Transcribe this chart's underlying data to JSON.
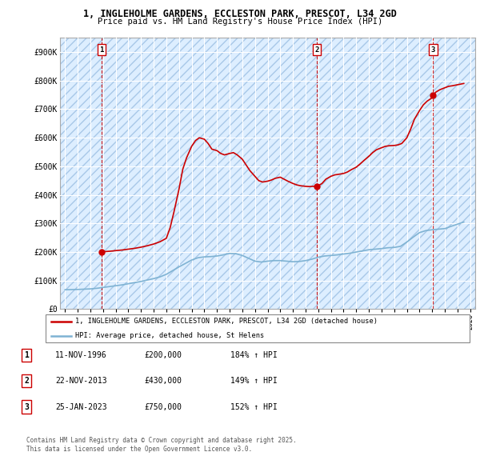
{
  "title": "1, INGLEHOLME GARDENS, ECCLESTON PARK, PRESCOT, L34 2GD",
  "subtitle": "Price paid vs. HM Land Registry's House Price Index (HPI)",
  "ylim": [
    0,
    950000
  ],
  "yticks": [
    0,
    100000,
    200000,
    300000,
    400000,
    500000,
    600000,
    700000,
    800000,
    900000
  ],
  "ytick_labels": [
    "£0",
    "£100K",
    "£200K",
    "£300K",
    "£400K",
    "£500K",
    "£600K",
    "£700K",
    "£800K",
    "£900K"
  ],
  "xlim_start": 1993.6,
  "xlim_end": 2026.4,
  "plot_bg_color": "#ddeeff",
  "red_line_color": "#cc0000",
  "blue_line_color": "#7fb3d3",
  "sale_marker_color": "#cc0000",
  "sales": [
    {
      "num": 1,
      "year": 1996.87,
      "price": 200000
    },
    {
      "num": 2,
      "year": 2013.9,
      "price": 430000
    },
    {
      "num": 3,
      "year": 2023.07,
      "price": 750000
    }
  ],
  "legend_line1": "1, INGLEHOLME GARDENS, ECCLESTON PARK, PRESCOT, L34 2GD (detached house)",
  "legend_line2": "HPI: Average price, detached house, St Helens",
  "footer_line1": "Contains HM Land Registry data © Crown copyright and database right 2025.",
  "footer_line2": "This data is licensed under the Open Government Licence v3.0.",
  "table_rows": [
    {
      "num": 1,
      "date": "11-NOV-1996",
      "price": "£200,000",
      "pct": "184% ↑ HPI"
    },
    {
      "num": 2,
      "date": "22-NOV-2013",
      "price": "£430,000",
      "pct": "149% ↑ HPI"
    },
    {
      "num": 3,
      "date": "25-JAN-2023",
      "price": "£750,000",
      "pct": "152% ↑ HPI"
    }
  ],
  "hpi_data": {
    "years": [
      1994.0,
      1994.5,
      1995.0,
      1995.5,
      1996.0,
      1996.5,
      1997.0,
      1997.5,
      1998.0,
      1998.5,
      1999.0,
      1999.5,
      2000.0,
      2000.5,
      2001.0,
      2001.5,
      2002.0,
      2002.5,
      2003.0,
      2003.5,
      2004.0,
      2004.5,
      2005.0,
      2005.5,
      2006.0,
      2006.5,
      2007.0,
      2007.5,
      2008.0,
      2008.5,
      2009.0,
      2009.5,
      2010.0,
      2010.5,
      2011.0,
      2011.5,
      2012.0,
      2012.5,
      2013.0,
      2013.5,
      2014.0,
      2014.5,
      2015.0,
      2015.5,
      2016.0,
      2016.5,
      2017.0,
      2017.5,
      2018.0,
      2018.5,
      2019.0,
      2019.5,
      2020.0,
      2020.5,
      2021.0,
      2021.5,
      2022.0,
      2022.5,
      2023.0,
      2023.5,
      2024.0,
      2024.5,
      2025.5
    ],
    "values": [
      68000,
      68500,
      69000,
      70000,
      71000,
      73000,
      76000,
      79000,
      82000,
      85000,
      89000,
      93000,
      97000,
      102000,
      107000,
      113000,
      122000,
      135000,
      148000,
      160000,
      172000,
      180000,
      183000,
      184000,
      186000,
      190000,
      195000,
      194000,
      188000,
      178000,
      168000,
      165000,
      168000,
      170000,
      170000,
      168000,
      166000,
      167000,
      170000,
      175000,
      182000,
      186000,
      188000,
      190000,
      193000,
      196000,
      200000,
      204000,
      208000,
      210000,
      212000,
      215000,
      216000,
      220000,
      235000,
      252000,
      268000,
      275000,
      278000,
      280000,
      282000,
      290000,
      305000
    ]
  },
  "property_data": {
    "years": [
      1996.87,
      1997.0,
      1997.3,
      1997.6,
      1998.0,
      1998.5,
      1999.0,
      1999.5,
      2000.0,
      2000.5,
      2001.0,
      2001.5,
      2002.0,
      2002.3,
      2002.6,
      2003.0,
      2003.3,
      2003.6,
      2004.0,
      2004.3,
      2004.6,
      2005.0,
      2005.3,
      2005.6,
      2006.0,
      2006.3,
      2006.6,
      2007.0,
      2007.3,
      2007.6,
      2008.0,
      2008.3,
      2008.6,
      2009.0,
      2009.3,
      2009.6,
      2010.0,
      2010.3,
      2010.6,
      2011.0,
      2011.3,
      2011.6,
      2012.0,
      2012.3,
      2012.6,
      2013.0,
      2013.3,
      2013.6,
      2013.9,
      2013.9,
      2014.0,
      2014.3,
      2014.6,
      2015.0,
      2015.3,
      2015.6,
      2016.0,
      2016.3,
      2016.6,
      2017.0,
      2017.3,
      2017.6,
      2018.0,
      2018.3,
      2018.6,
      2019.0,
      2019.3,
      2019.6,
      2020.0,
      2020.3,
      2020.6,
      2021.0,
      2021.3,
      2021.6,
      2022.0,
      2022.3,
      2022.6,
      2023.0,
      2023.07,
      2023.07,
      2023.3,
      2023.6,
      2024.0,
      2024.3,
      2024.6,
      2025.5
    ],
    "values": [
      200000,
      201000,
      202000,
      203000,
      205000,
      207000,
      210000,
      213000,
      217000,
      222000,
      228000,
      236000,
      248000,
      285000,
      340000,
      420000,
      490000,
      530000,
      570000,
      590000,
      600000,
      595000,
      580000,
      560000,
      555000,
      545000,
      540000,
      545000,
      548000,
      540000,
      525000,
      505000,
      485000,
      465000,
      450000,
      445000,
      448000,
      452000,
      458000,
      462000,
      455000,
      448000,
      440000,
      435000,
      432000,
      430000,
      429000,
      430000,
      430000,
      430000,
      432000,
      440000,
      455000,
      465000,
      470000,
      472000,
      475000,
      480000,
      488000,
      497000,
      508000,
      520000,
      535000,
      548000,
      558000,
      565000,
      570000,
      572000,
      573000,
      575000,
      580000,
      600000,
      630000,
      665000,
      695000,
      715000,
      728000,
      740000,
      750000,
      750000,
      760000,
      768000,
      775000,
      780000,
      782000,
      790000
    ]
  }
}
